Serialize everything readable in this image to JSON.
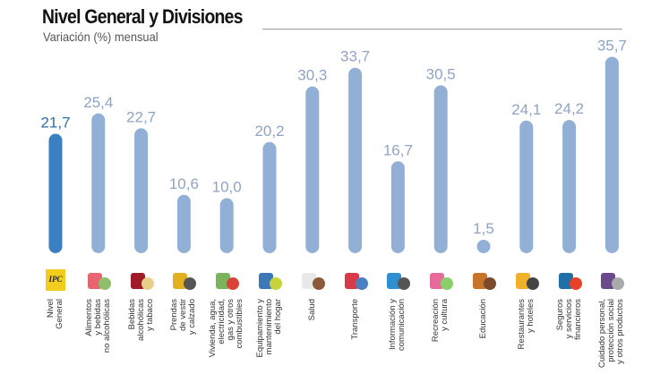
{
  "header": {
    "title": "Nivel General y Divisiones",
    "subtitle": "Variación (%) mensual"
  },
  "colors": {
    "highlight_bar": "#3a7fc1",
    "bar": "#92b0d6",
    "highlight_label": "#2f6fa8",
    "label": "#8fa4c4"
  },
  "chart_data": {
    "type": "bar",
    "title": "Nivel General y Divisiones",
    "subtitle": "Variación (%) mensual",
    "xlabel": "",
    "ylabel": "Variación (%) mensual",
    "ylim": [
      0,
      36
    ],
    "grid": false,
    "categories": [
      "Nivel General",
      "Alimentos y bebidas no alcohólicas",
      "Bebidas alcohólicas y tabaco",
      "Prendas de vestir y calzado",
      "Vivienda, agua, electricidad, gas y otros combustibles",
      "Equipamiento y mantenimiento del hogar",
      "Salud",
      "Transporte",
      "Información y comunicación",
      "Recreación y cultura",
      "Educación",
      "Restaurantes y hoteles",
      "Seguros y servicios financieros",
      "Cuidado personal, protección social y otros productos"
    ],
    "category_lines": [
      "Nivel\nGeneral",
      "Alimentos\ny bebidas\nno alcohólicas",
      "Bebidas\nalcohólicas\ny tabaco",
      "Prendas\nde vestir\ny calzado",
      "Vivienda, agua,\nelectricidad,\ngas y otros\ncombustibles",
      "Equipamiento y\nmantenimiento\ndel hogar",
      "Salud",
      "Transporte",
      "Información y\ncomunicación",
      "Recreación\ny cultura",
      "Educación",
      "Restaurantes\ny hoteles",
      "Seguros\ny servicios\nfinancieros",
      "Cuidado personal,\nprotección social\ny otros productos"
    ],
    "values": [
      21.7,
      25.4,
      22.7,
      10.6,
      10.0,
      20.2,
      30.3,
      33.7,
      16.7,
      30.5,
      1.5,
      24.1,
      24.2,
      35.7
    ],
    "value_labels": [
      "21,7",
      "25,4",
      "22,7",
      "10,6",
      "10,0",
      "20,2",
      "30,3",
      "33,7",
      "16,7",
      "30,5",
      "1,5",
      "24,1",
      "24,2",
      "35,7"
    ],
    "highlight_index": 0,
    "icons": [
      "ipc-logo-icon",
      "food-icon",
      "wine-bottles-icon",
      "jacket-icon",
      "house-icon",
      "washing-machine-icon",
      "doctor-icon",
      "car-plane-icon",
      "computer-icon",
      "theater-masks-icon",
      "school-icon",
      "cutlery-icon",
      "bank-icon",
      "personal-care-icon"
    ]
  }
}
